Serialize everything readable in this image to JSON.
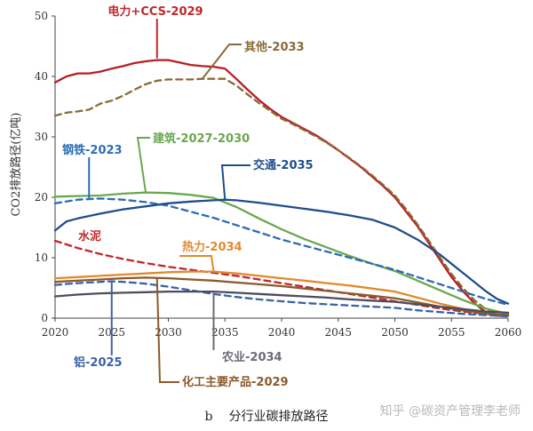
{
  "caption": {
    "letter": "b",
    "text": "分行业碳排放路径"
  },
  "watermark": "知乎 @碳资产管理李老师",
  "chart_data": {
    "type": "line",
    "title": "",
    "xlabel": "",
    "ylabel": "CO2排放路径(亿吨)",
    "xlim": [
      2020,
      2060
    ],
    "ylim": [
      0,
      50
    ],
    "x_ticks": [
      2020,
      2025,
      2030,
      2035,
      2040,
      2045,
      2050,
      2055,
      2060
    ],
    "y_ticks": [
      0,
      10,
      20,
      30,
      40,
      50
    ],
    "grid": false,
    "legend": "none",
    "series": [
      {
        "name": "电力+CCS-2029",
        "color": "#b81d24",
        "dash": false,
        "x": [
          2020,
          2021,
          2022,
          2023,
          2024,
          2025,
          2026,
          2027,
          2028,
          2029,
          2030,
          2031,
          2032,
          2033,
          2034,
          2035,
          2036,
          2037,
          2038,
          2039,
          2040,
          2041,
          2042,
          2043,
          2044,
          2045,
          2046,
          2047,
          2048,
          2049,
          2050,
          2051,
          2052,
          2053,
          2054,
          2055,
          2056,
          2057,
          2058,
          2059,
          2060
        ],
        "y": [
          39,
          40,
          40.5,
          40.5,
          40.8,
          41.3,
          41.7,
          42.2,
          42.5,
          42.7,
          42.7,
          42.3,
          41.9,
          41.7,
          41.6,
          41.3,
          39.6,
          37.8,
          36.1,
          34.6,
          33.3,
          32.3,
          31.3,
          30.3,
          29.1,
          27.8,
          26.4,
          25,
          23.4,
          21.8,
          20,
          17.6,
          15.2,
          12.4,
          9.6,
          6.8,
          4.5,
          2.5,
          1,
          0.4,
          0.4
        ]
      },
      {
        "name": "其他-2033",
        "color": "#8a6a35",
        "dash": true,
        "x": [
          2020,
          2021,
          2022,
          2023,
          2024,
          2025,
          2026,
          2027,
          2028,
          2029,
          2030,
          2031,
          2032,
          2033,
          2034,
          2035,
          2036,
          2037,
          2038,
          2039,
          2040,
          2041,
          2042,
          2043,
          2044,
          2045,
          2046,
          2047,
          2048,
          2049,
          2050,
          2051,
          2052,
          2053,
          2054,
          2055,
          2056,
          2057,
          2058,
          2059,
          2060
        ],
        "y": [
          33.5,
          34,
          34.2,
          34.5,
          35.5,
          36,
          36.8,
          37.8,
          38.7,
          39.3,
          39.5,
          39.5,
          39.5,
          39.6,
          39.6,
          39.6,
          38.5,
          37,
          35.6,
          34.3,
          33,
          32.1,
          31.1,
          30.1,
          29,
          27.8,
          26.5,
          25.1,
          23.6,
          22,
          20.3,
          18,
          15.5,
          12.8,
          10,
          7.3,
          5,
          3,
          1.5,
          0.6,
          0.5
        ]
      },
      {
        "name": "建筑-2027-2030",
        "color": "#6aa84f",
        "dash": false,
        "x": [
          2020,
          2022,
          2024,
          2026,
          2028,
          2030,
          2032,
          2034,
          2036,
          2038,
          2040,
          2042,
          2044,
          2046,
          2048,
          2050,
          2052,
          2054,
          2056,
          2058,
          2060
        ],
        "y": [
          20.1,
          20.2,
          20.3,
          20.6,
          20.8,
          20.7,
          20.4,
          19.9,
          18.4,
          16.5,
          14.7,
          13.1,
          11.7,
          10.3,
          9,
          7.8,
          6.2,
          4.6,
          3,
          1.6,
          0.7
        ]
      },
      {
        "name": "钢铁-2023",
        "color": "#2e6db5",
        "dash": true,
        "x": [
          2020,
          2022,
          2024,
          2026,
          2028,
          2030,
          2032,
          2034,
          2036,
          2038,
          2040,
          2042,
          2044,
          2046,
          2048,
          2050,
          2052,
          2054,
          2056,
          2058,
          2060
        ],
        "y": [
          19,
          19.6,
          19.8,
          19.6,
          19.2,
          18.6,
          17.6,
          16.6,
          15.4,
          14.2,
          13,
          12,
          11,
          10,
          9,
          8,
          6.8,
          5.6,
          4.4,
          3.2,
          2.2
        ]
      },
      {
        "name": "交通-2035",
        "color": "#1f4e8c",
        "dash": false,
        "x": [
          2020,
          2021,
          2022,
          2024,
          2026,
          2028,
          2030,
          2032,
          2034,
          2035,
          2036,
          2038,
          2040,
          2042,
          2044,
          2046,
          2048,
          2050,
          2052,
          2054,
          2056,
          2058,
          2059,
          2060
        ],
        "y": [
          14.5,
          16,
          16.5,
          17.3,
          18,
          18.5,
          19,
          19.3,
          19.5,
          19.6,
          19.5,
          19.1,
          18.6,
          18.1,
          17.6,
          17,
          16.3,
          15,
          13,
          10.5,
          7.5,
          4.5,
          3.2,
          2.4
        ]
      },
      {
        "name": "水泥",
        "color": "#c0272d",
        "dash": true,
        "x": [
          2020,
          2022,
          2024,
          2026,
          2028,
          2030,
          2032,
          2034,
          2036,
          2038,
          2040,
          2042,
          2044,
          2046,
          2048,
          2050,
          2052,
          2054,
          2056,
          2058,
          2060
        ],
        "y": [
          12.8,
          11.6,
          10.6,
          9.8,
          9.1,
          8.5,
          8,
          7.5,
          7,
          6.4,
          5.8,
          5.2,
          4.6,
          4,
          3.4,
          2.8,
          2.2,
          1.6,
          1.1,
          0.7,
          0.4
        ]
      },
      {
        "name": "热力-2034",
        "color": "#e08a2e",
        "dash": false,
        "x": [
          2020,
          2022,
          2024,
          2026,
          2028,
          2030,
          2032,
          2034,
          2036,
          2038,
          2040,
          2042,
          2044,
          2046,
          2048,
          2050,
          2052,
          2054,
          2056,
          2058,
          2060
        ],
        "y": [
          6.6,
          6.8,
          7,
          7.2,
          7.4,
          7.6,
          7.7,
          7.7,
          7.4,
          7,
          6.6,
          6.2,
          5.8,
          5.4,
          4.9,
          4.4,
          3.4,
          2.4,
          1.5,
          0.8,
          0.4
        ]
      },
      {
        "name": "化工主要产品-2029",
        "color": "#8b5a2b",
        "dash": false,
        "x": [
          2020,
          2022,
          2024,
          2026,
          2028,
          2030,
          2032,
          2034,
          2036,
          2038,
          2040,
          2042,
          2044,
          2046,
          2048,
          2050,
          2052,
          2054,
          2056,
          2058,
          2060
        ],
        "y": [
          6,
          6.2,
          6.4,
          6.6,
          6.7,
          6.6,
          6.4,
          6.2,
          5.9,
          5.6,
          5.3,
          4.9,
          4.5,
          4.1,
          3.7,
          3.3,
          2.6,
          1.9,
          1.3,
          0.8,
          0.5
        ]
      },
      {
        "name": "铝-2025",
        "color": "#3a62a7",
        "dash": true,
        "x": [
          2020,
          2022,
          2024,
          2025,
          2026,
          2028,
          2030,
          2032,
          2034,
          2036,
          2038,
          2040,
          2042,
          2044,
          2046,
          2048,
          2050,
          2052,
          2054,
          2056,
          2058,
          2060
        ],
        "y": [
          5.5,
          5.8,
          6,
          6.1,
          6,
          5.7,
          5.2,
          4.6,
          4,
          3.5,
          3.1,
          2.8,
          2.5,
          2.3,
          2.1,
          1.9,
          1.7,
          1.3,
          1,
          0.7,
          0.5,
          0.3
        ]
      },
      {
        "name": "农业-2034",
        "color": "#4d4d5e",
        "dash": false,
        "x": [
          2020,
          2022,
          2024,
          2026,
          2028,
          2030,
          2032,
          2034,
          2036,
          2038,
          2040,
          2042,
          2044,
          2046,
          2048,
          2050,
          2052,
          2054,
          2056,
          2058,
          2060
        ],
        "y": [
          3.6,
          3.9,
          4.1,
          4.2,
          4.3,
          4.4,
          4.4,
          4.4,
          4.2,
          4,
          3.8,
          3.6,
          3.4,
          3.1,
          2.9,
          2.7,
          2.3,
          1.9,
          1.5,
          1.1,
          0.9
        ]
      }
    ],
    "annotations": [
      {
        "text": "电力+CCS-2029",
        "color": "#c0272d",
        "at_year": 2029,
        "at_value": 42.7
      },
      {
        "text": "其他-2033",
        "color": "#8a6a35",
        "at_year": 2033,
        "at_value": 39.6
      },
      {
        "text": "钢铁-2023",
        "color": "#2e6db5",
        "at_year": 2023,
        "at_value": 19.8
      },
      {
        "text": "建筑-2027-2030",
        "color": "#6aa84f",
        "at_year": 2028,
        "at_value": 20.8
      },
      {
        "text": "交通-2035",
        "color": "#1f4e8c",
        "at_year": 2035,
        "at_value": 19.6
      },
      {
        "text": "水泥",
        "color": "#c0272d",
        "at_year": 2020,
        "at_value": 12.8
      },
      {
        "text": "热力-2034",
        "color": "#e08a2e",
        "at_year": 2034,
        "at_value": 7.7
      },
      {
        "text": "铝-2025",
        "color": "#3a62a7",
        "at_year": 2025,
        "at_value": 6.1
      },
      {
        "text": "农业-2034",
        "color": "#6b6b7a",
        "at_year": 2034,
        "at_value": 4.4
      },
      {
        "text": "化工主要产品-2029",
        "color": "#8b5a2b",
        "at_year": 2029,
        "at_value": 6.7
      }
    ]
  }
}
